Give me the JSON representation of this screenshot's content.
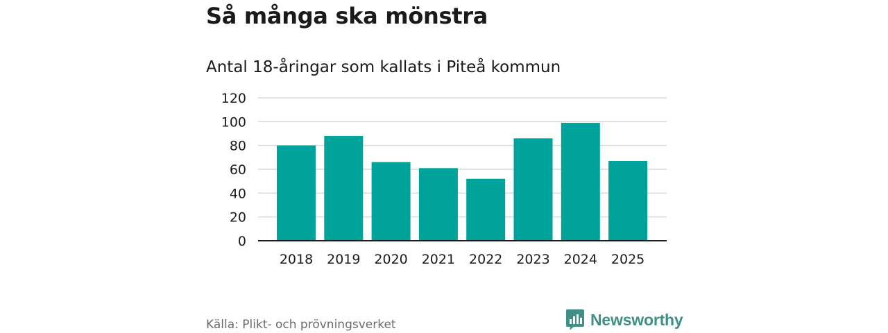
{
  "header": {
    "title": "Så många ska mönstra",
    "subtitle": "Antal 18-åringar som kallats i Piteå kommun"
  },
  "footer": {
    "source": "Källa: Plikt- och prövningsverket",
    "brand": "Newsworthy",
    "brand_icon": "bar-chart-speech-bubble-icon"
  },
  "colors": {
    "bar": "#00a39a",
    "grid": "#d9d9d9",
    "axis": "#1a1a1a",
    "brand": "#3f8f86"
  },
  "chart_data": {
    "type": "bar",
    "title": "Antal 18-åringar som kallats i Piteå kommun",
    "xlabel": "",
    "ylabel": "",
    "categories": [
      "2018",
      "2019",
      "2020",
      "2021",
      "2022",
      "2023",
      "2024",
      "2025"
    ],
    "values": [
      80,
      88,
      66,
      61,
      52,
      86,
      99,
      67
    ],
    "ylim": [
      0,
      120
    ],
    "yticks": [
      0,
      20,
      40,
      60,
      80,
      100,
      120
    ],
    "grid": true,
    "legend": "none"
  }
}
